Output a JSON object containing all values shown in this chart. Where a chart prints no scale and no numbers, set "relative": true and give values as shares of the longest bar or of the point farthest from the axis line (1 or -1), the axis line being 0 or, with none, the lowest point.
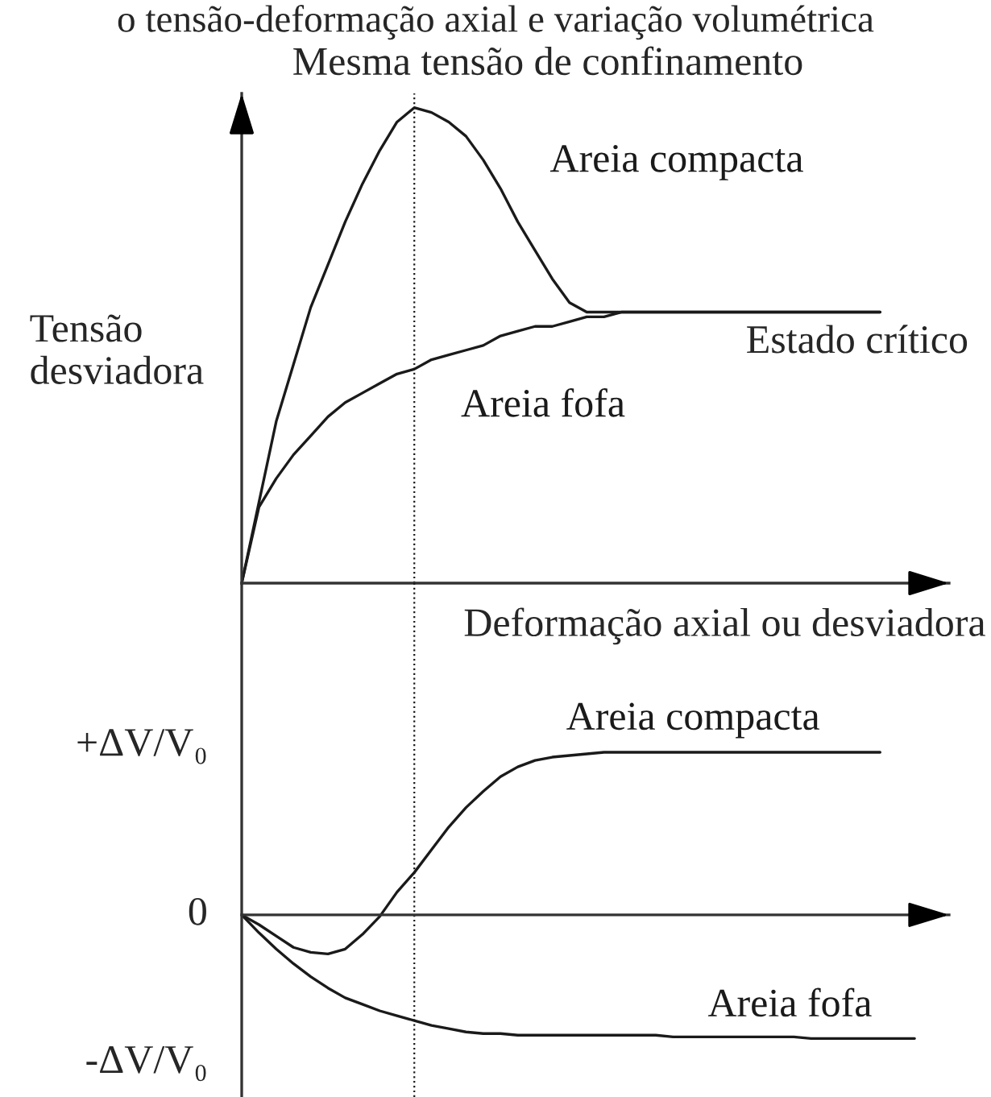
{
  "chart_data": [
    {
      "type": "line",
      "title": "o tensão-deformação axial e variação volumétrica",
      "subtitle": "Mesma tensão de confinamento",
      "xlabel": "Deformação axial ou desviadora",
      "ylabel": "Tensão\ndesviadora",
      "relative": true,
      "categories": [
        null,
        null,
        null,
        null,
        null,
        null,
        null,
        null,
        null,
        null,
        null,
        null,
        null,
        null,
        null,
        null,
        null,
        null,
        null,
        null,
        null,
        null,
        null,
        null,
        null,
        null,
        null,
        null,
        null,
        null,
        null,
        null,
        null,
        null,
        null,
        null,
        null,
        null,
        null,
        null,
        null,
        null
      ],
      "series": [
        {
          "name": "Areia compacta",
          "color": "#1a1a1a",
          "values": [
            0,
            0.17,
            0.34,
            0.46,
            0.58,
            0.67,
            0.76,
            0.84,
            0.91,
            0.97,
            1,
            0.99,
            0.97,
            0.94,
            0.89,
            0.83,
            0.76,
            0.7,
            0.64,
            0.59,
            0.57,
            0.57,
            0.57,
            0.57,
            0.57,
            0.57,
            0.57,
            0.57,
            0.57,
            0.57,
            0.57,
            0.57,
            0.57,
            0.57,
            0.57,
            0.57,
            0.57,
            0.57,
            null,
            null,
            null,
            null
          ]
        },
        {
          "name": "Areia fofa",
          "color": "#1a1a1a",
          "values": [
            0,
            0.16,
            0.22,
            0.27,
            0.31,
            0.35,
            0.38,
            0.4,
            0.42,
            0.44,
            0.45,
            0.47,
            0.48,
            0.49,
            0.5,
            0.52,
            0.53,
            0.54,
            0.54,
            0.55,
            0.56,
            0.56,
            0.57,
            0.57,
            0.57,
            0.57,
            0.57,
            0.57,
            0.57,
            0.57,
            0.57,
            0.57,
            0.57,
            0.57,
            0.57,
            0.57,
            0.57,
            0.57,
            null,
            null,
            null,
            null
          ]
        }
      ],
      "annotations": [
        "Estado crítico"
      ]
    },
    {
      "type": "line",
      "relative": true,
      "categories": [
        null,
        null,
        null,
        null,
        null,
        null,
        null,
        null,
        null,
        null,
        null,
        null,
        null,
        null,
        null,
        null,
        null,
        null,
        null,
        null,
        null,
        null,
        null,
        null,
        null,
        null,
        null,
        null,
        null,
        null,
        null,
        null,
        null,
        null,
        null,
        null,
        null,
        null,
        null,
        null,
        null,
        null
      ],
      "series": [
        {
          "name": "Areia compacta",
          "color": "#1a1a1a",
          "values": [
            0,
            -0.06,
            -0.13,
            -0.2,
            -0.23,
            -0.24,
            -0.21,
            -0.12,
            -0.01,
            0.14,
            0.26,
            0.4,
            0.54,
            0.66,
            0.76,
            0.85,
            0.91,
            0.95,
            0.97,
            0.98,
            0.99,
            1,
            1,
            1,
            1,
            1,
            1,
            1,
            1,
            1,
            1,
            1,
            1,
            1,
            1,
            1,
            1,
            1,
            null,
            null,
            null,
            null
          ]
        },
        {
          "name": "Areia fofa",
          "color": "#1a1a1a",
          "values": [
            0,
            -0.11,
            -0.21,
            -0.3,
            -0.38,
            -0.45,
            -0.51,
            -0.55,
            -0.59,
            -0.62,
            -0.65,
            -0.68,
            -0.7,
            -0.72,
            -0.73,
            -0.73,
            -0.74,
            -0.74,
            -0.74,
            -0.74,
            -0.74,
            -0.74,
            -0.74,
            -0.74,
            -0.74,
            -0.75,
            -0.75,
            -0.75,
            -0.75,
            -0.75,
            -0.75,
            -0.75,
            -0.75,
            -0.76,
            -0.76,
            -0.76,
            -0.76,
            -0.76,
            -0.76,
            -0.76,
            null,
            null
          ]
        }
      ],
      "annotations": [
        "+ΔV/V₀",
        "0",
        "-ΔV/V₀"
      ]
    }
  ]
}
